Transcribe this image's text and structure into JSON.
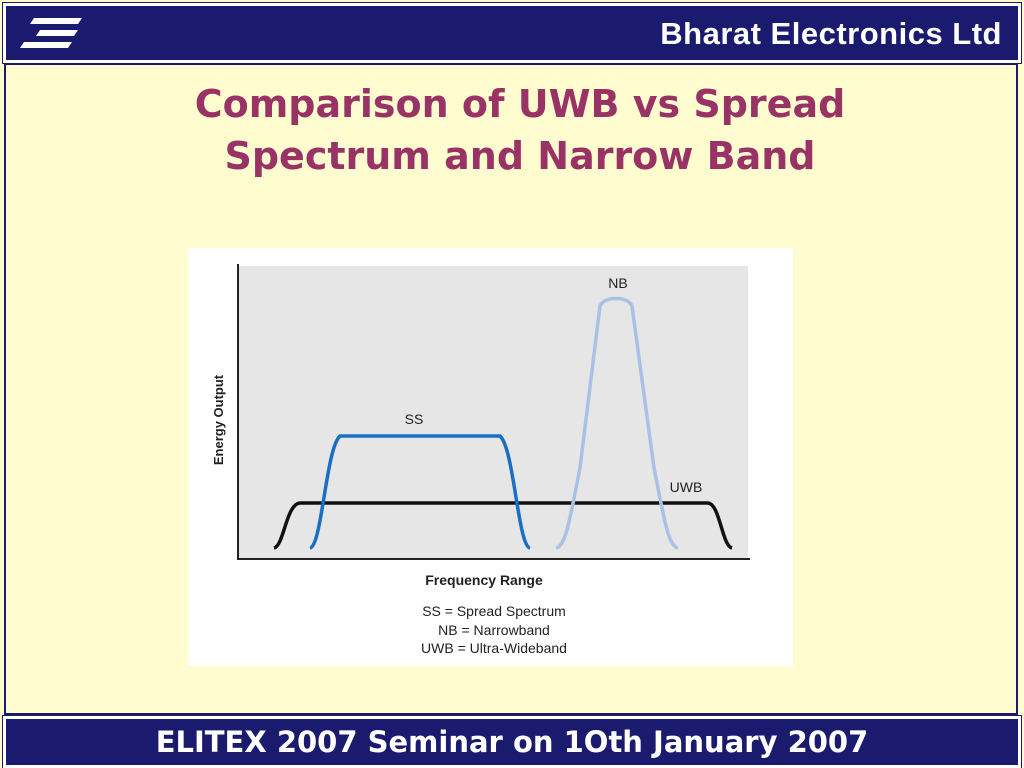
{
  "header": {
    "company": "Bharat Electronics Ltd",
    "logo_icon": "bel-logo-icon",
    "background_color": "#1a1a6e"
  },
  "title": {
    "line1": "Comparison of UWB vs Spread",
    "line2": "Spectrum and Narrow Band",
    "color": "#993366"
  },
  "diagram": {
    "y_axis_label": "Energy Output",
    "x_axis_label": "Frequency Range",
    "curves": {
      "ss": "SS",
      "nb": "NB",
      "uwb": "UWB"
    },
    "legend": [
      "SS = Spread Spectrum",
      "NB = Narrowband",
      "UWB = Ultra-Wideband"
    ],
    "colors": {
      "ss": "#1a6fc4",
      "nb": "#a9c1e6",
      "uwb": "#111111"
    }
  },
  "footer": {
    "text": "ELITEX 2007 Seminar on 1Oth January 2007"
  }
}
